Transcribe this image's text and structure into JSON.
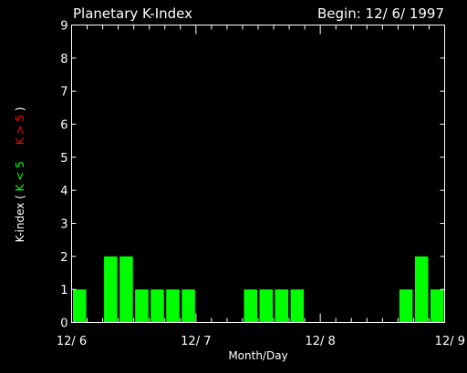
{
  "chart_data": {
    "type": "bar",
    "title": "Planetary K-Index",
    "subtitle": "Begin: 12/ 6/ 1997",
    "xlabel": "Month/Day",
    "ylabel_parts": {
      "prefix": "K-index  (",
      "low": "K < 5",
      "high": "K > 5",
      "suffix": ")"
    },
    "ylim": [
      0,
      9
    ],
    "yticks": [
      "0",
      "1",
      "2",
      "3",
      "4",
      "5",
      "6",
      "7",
      "8",
      "9"
    ],
    "x_tick_labels": [
      "12/ 6",
      "12/ 7",
      "12/ 8",
      "12/ 9"
    ],
    "bins_per_day": 8,
    "days": 3,
    "values": [
      1,
      null,
      2,
      2,
      1,
      1,
      1,
      1,
      null,
      null,
      null,
      1,
      1,
      1,
      1,
      null,
      null,
      null,
      null,
      null,
      null,
      1,
      2,
      1
    ],
    "colors": {
      "low": "#00ff00",
      "high": "#ff0000",
      "axes": "#ffffff",
      "background": "#000000"
    }
  }
}
